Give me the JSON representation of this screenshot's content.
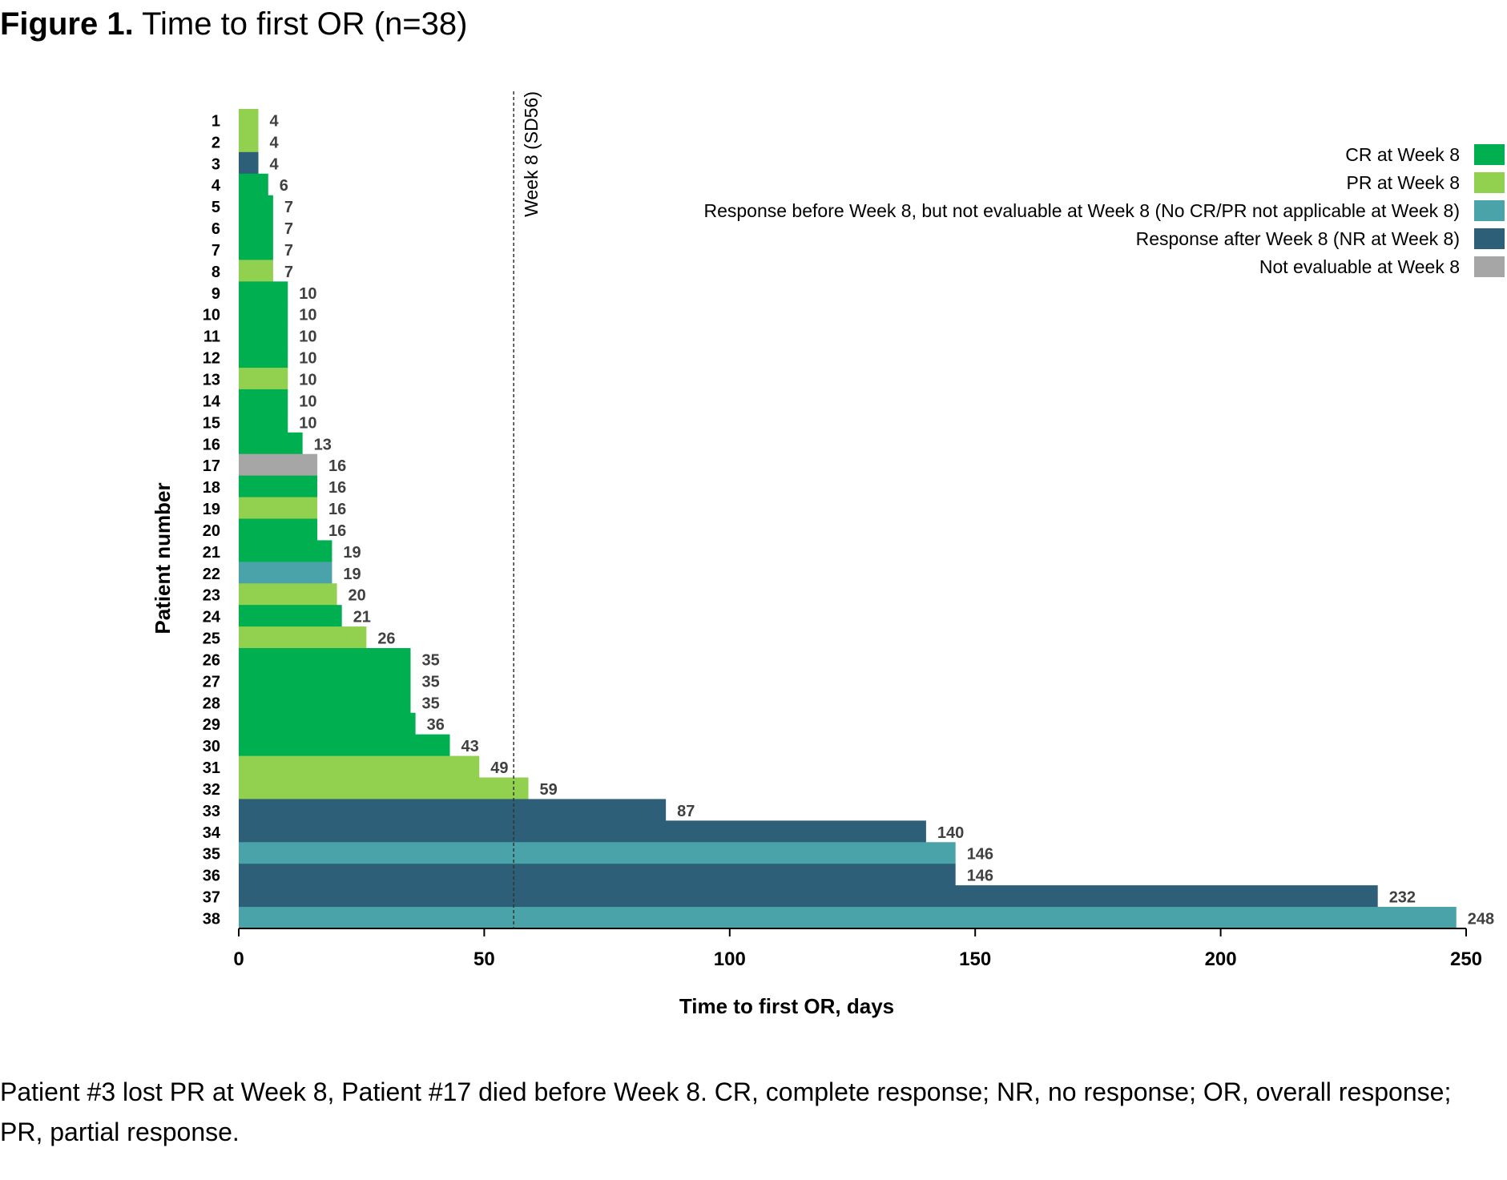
{
  "figure": {
    "title_bold": "Figure 1.",
    "title_rest": "Time to first OR (n=38)",
    "caption": "Patient #3 lost PR at Week 8, Patient #17 died before Week 8. CR, complete response; NR, no response; OR, overall response; PR, partial response."
  },
  "chart_data": {
    "type": "bar",
    "orientation": "horizontal",
    "xlabel": "Time to first OR, days",
    "ylabel": "Patient number",
    "xlim": [
      0,
      250
    ],
    "xticks": [
      0,
      50,
      100,
      150,
      200,
      250
    ],
    "reference_line": {
      "x": 56,
      "label": "Week 8 (SD56)",
      "style": "dotted"
    },
    "categories": [
      "1",
      "2",
      "3",
      "4",
      "5",
      "6",
      "7",
      "8",
      "9",
      "10",
      "11",
      "12",
      "13",
      "14",
      "15",
      "16",
      "17",
      "18",
      "19",
      "20",
      "21",
      "22",
      "23",
      "24",
      "25",
      "26",
      "27",
      "28",
      "29",
      "30",
      "31",
      "32",
      "33",
      "34",
      "35",
      "36",
      "37",
      "38"
    ],
    "values": [
      4,
      4,
      4,
      6,
      7,
      7,
      7,
      7,
      10,
      10,
      10,
      10,
      10,
      10,
      10,
      13,
      16,
      16,
      16,
      16,
      19,
      19,
      20,
      21,
      26,
      35,
      35,
      35,
      36,
      43,
      49,
      59,
      87,
      140,
      146,
      146,
      232,
      248
    ],
    "groups": [
      "PR",
      "PR",
      "NR",
      "CR",
      "CR",
      "CR",
      "CR",
      "PR",
      "CR",
      "CR",
      "CR",
      "CR",
      "PR",
      "CR",
      "CR",
      "CR",
      "NE",
      "CR",
      "PR",
      "CR",
      "CR",
      "RB",
      "PR",
      "CR",
      "PR",
      "CR",
      "CR",
      "CR",
      "CR",
      "CR",
      "PR",
      "PR",
      "NR",
      "NR",
      "RB",
      "NR",
      "NR",
      "RB"
    ],
    "legend_position": "top-right",
    "legend": [
      {
        "key": "CR",
        "label": "CR at Week 8",
        "color": "#00b050"
      },
      {
        "key": "PR",
        "label": "PR at Week 8",
        "color": "#92d050"
      },
      {
        "key": "RB",
        "label": "Response before Week 8, but not evaluable at Week 8 (No CR/PR not applicable at Week 8)",
        "color": "#4aa3a8"
      },
      {
        "key": "NR",
        "label": "Response after Week 8 (NR at Week 8)",
        "color": "#2e5f78"
      },
      {
        "key": "NE",
        "label": "Not evaluable at Week 8",
        "color": "#a6a6a6"
      }
    ]
  }
}
